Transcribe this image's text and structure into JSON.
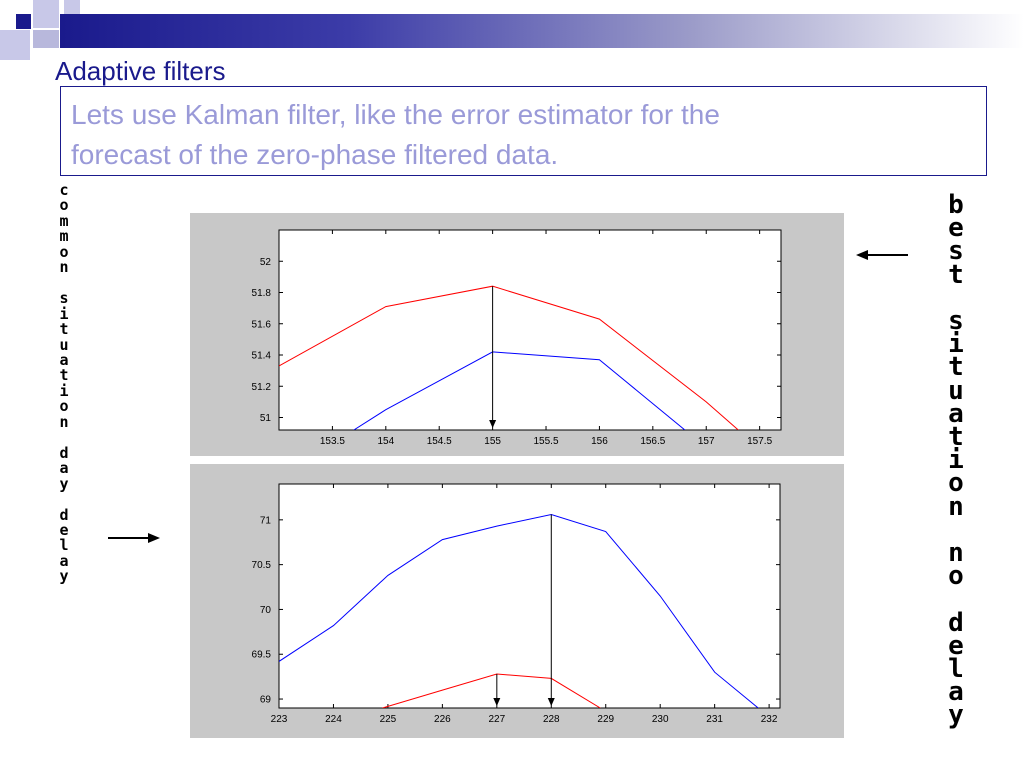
{
  "slide": {
    "title": "Adaptive filters",
    "body_lines": [
      "Lets use Kalman filter, like the error estimator for the",
      "forecast of the zero-phase filtered data."
    ],
    "left_vertical_label": "common situation day delay",
    "right_vertical_label": "best situation no delay",
    "colors": {
      "accent": "#1a1a8c",
      "body_text": "#9a9ad8",
      "series_red": "#ff0000",
      "series_blue": "#0000ff",
      "panel": "#c8c8c8"
    }
  },
  "chart_data": [
    {
      "type": "line",
      "title": "",
      "xlabel": "",
      "ylabel": "",
      "xlim": [
        153,
        157.7
      ],
      "ylim": [
        50.92,
        52.2
      ],
      "xticks": [
        153.5,
        154,
        154.5,
        155,
        155.5,
        156,
        156.5,
        157,
        157.5
      ],
      "yticks": [
        51,
        51.2,
        51.4,
        51.6,
        51.8,
        52
      ],
      "series": [
        {
          "color": "#ff0000",
          "x": [
            153,
            154,
            155,
            156,
            157,
            157.3
          ],
          "y": [
            51.33,
            51.71,
            51.84,
            51.63,
            51.1,
            50.92
          ]
        },
        {
          "color": "#0000ff",
          "x": [
            153.7,
            154,
            155,
            156,
            156.8
          ],
          "y": [
            50.92,
            51.05,
            51.42,
            51.37,
            50.92
          ]
        }
      ],
      "markers": [
        {
          "type": "arrow-down",
          "x": 155,
          "from_y": 51.84
        }
      ]
    },
    {
      "type": "line",
      "title": "",
      "xlabel": "",
      "ylabel": "",
      "xlim": [
        223,
        232.2
      ],
      "ylim": [
        68.9,
        71.4
      ],
      "xticks": [
        223,
        224,
        225,
        226,
        227,
        228,
        229,
        230,
        231,
        232
      ],
      "yticks": [
        69,
        69.5,
        70,
        70.5,
        71
      ],
      "series": [
        {
          "color": "#0000ff",
          "x": [
            223,
            224,
            225,
            226,
            227,
            228,
            229,
            230,
            231,
            231.8
          ],
          "y": [
            69.42,
            69.82,
            70.38,
            70.78,
            70.93,
            71.06,
            70.87,
            70.15,
            69.3,
            68.9
          ]
        },
        {
          "color": "#ff0000",
          "x": [
            224.9,
            226,
            227,
            228,
            228.9
          ],
          "y": [
            68.9,
            69.1,
            69.28,
            69.23,
            68.9
          ]
        }
      ],
      "markers": [
        {
          "type": "arrow-down",
          "x": 227,
          "from_y": 69.28
        },
        {
          "type": "arrow-down",
          "x": 228,
          "from_y": 71.06
        }
      ]
    }
  ]
}
